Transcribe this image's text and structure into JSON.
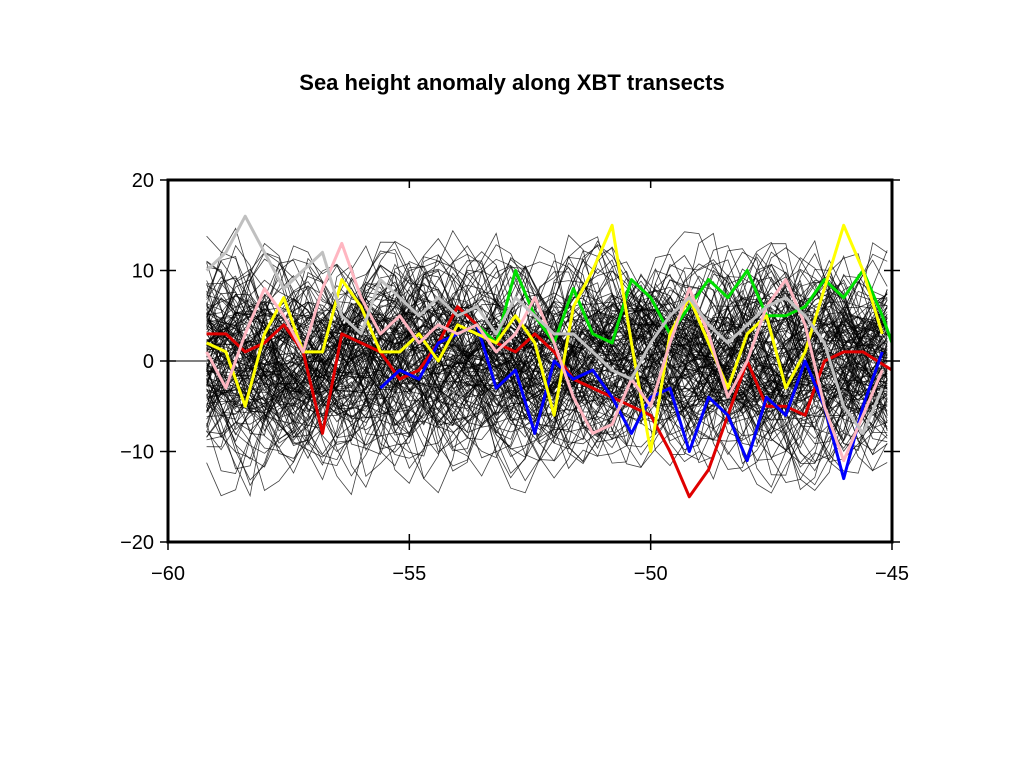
{
  "chart_data": {
    "type": "line",
    "title": "Sea height anomaly along XBT transects",
    "xlabel": "",
    "ylabel": "",
    "xlim": [
      -60,
      -45
    ],
    "ylim": [
      -20,
      20
    ],
    "xticks": [
      -60,
      -55,
      -50,
      -45
    ],
    "xtick_labels": [
      "−60",
      "−55",
      "−50",
      "−45"
    ],
    "yticks": [
      20,
      10,
      0,
      -10,
      -20
    ],
    "ytick_labels": [
      "20",
      "10",
      "0",
      "−10",
      "−20"
    ],
    "grid": false,
    "legend": "none",
    "background_series": {
      "description_count": 150,
      "color": "#000000",
      "x_start": -59.2,
      "x_end": -45,
      "x_step": 0.3,
      "envelope": [
        -20,
        20
      ]
    },
    "series": [
      {
        "color": "#e00000",
        "x": [
          -59.2,
          -58.8,
          -58.4,
          -58.0,
          -57.6,
          -57.2,
          -56.8,
          -56.4,
          -56.0,
          -55.6,
          -55.2,
          -54.8,
          -54.4,
          -54.0,
          -53.6,
          -53.2,
          -52.8,
          -52.4,
          -52.0,
          -51.6,
          -51.2,
          -50.8,
          -50.4,
          -50.0,
          -49.6,
          -49.2,
          -48.8,
          -48.4,
          -48.0,
          -47.6,
          -47.2,
          -46.8,
          -46.4,
          -46.0,
          -45.6,
          -45.0
        ],
        "y": [
          3,
          3,
          1,
          2,
          4,
          1,
          -8,
          3,
          2,
          1,
          -2,
          -1,
          2,
          6,
          4,
          2,
          1,
          3,
          1,
          -2,
          -3,
          -4,
          -5,
          -6,
          -10,
          -15,
          -12,
          -6,
          0,
          -5,
          -5,
          -6,
          0,
          1,
          1,
          -1
        ]
      },
      {
        "color": "#0000ff",
        "x": [
          -55.6,
          -55.2,
          -54.8,
          -54.4,
          -54.0,
          -53.6,
          -53.2,
          -52.8,
          -52.4,
          -52.0,
          -51.6,
          -51.2,
          -50.8,
          -50.4,
          -50.0,
          -49.6,
          -49.2,
          -48.8,
          -48.4,
          -48.0,
          -47.6,
          -47.2,
          -46.8,
          -46.4,
          -46.0,
          -45.6,
          -45.2
        ],
        "y": [
          -3,
          -1,
          -2,
          2,
          3,
          4,
          -3,
          -1,
          -8,
          0,
          -2,
          -1,
          -4,
          -8,
          -4,
          -3,
          -10,
          -4,
          -6,
          -11,
          -4,
          -6,
          0,
          -5,
          -13,
          -5,
          1
        ]
      },
      {
        "color": "#00e000",
        "x": [
          -54.0,
          -53.6,
          -53.2,
          -52.8,
          -52.4,
          -52.0,
          -51.6,
          -51.2,
          -50.8,
          -50.4,
          -50.0,
          -49.6,
          -49.2,
          -48.8,
          -48.4,
          -48.0,
          -47.6,
          -47.2,
          -46.8,
          -46.4,
          -46.0,
          -45.6,
          -45.2,
          -45.0
        ],
        "y": [
          3,
          4,
          2,
          10,
          5,
          2,
          8,
          3,
          2,
          9,
          7,
          3,
          6,
          9,
          7,
          10,
          5,
          5,
          6,
          9,
          7,
          10,
          5,
          2
        ]
      },
      {
        "color": "#ffff00",
        "x": [
          -59.2,
          -58.8,
          -58.4,
          -58.0,
          -57.6,
          -57.2,
          -56.8,
          -56.4,
          -56.0,
          -55.6,
          -55.2,
          -54.8,
          -54.4,
          -54.0,
          -53.6,
          -53.2,
          -52.8,
          -52.4,
          -52.0,
          -51.6,
          -51.2,
          -50.8,
          -50.4,
          -50.0,
          -49.6,
          -49.2,
          -48.8,
          -48.4,
          -48.0,
          -47.6,
          -47.2,
          -46.8,
          -46.4,
          -46.0,
          -45.6,
          -45.2
        ],
        "y": [
          2,
          1,
          -5,
          3,
          7,
          1,
          1,
          9,
          6,
          1,
          1,
          3,
          0,
          4,
          3,
          2,
          5,
          2,
          -6,
          6,
          10,
          15,
          2,
          -10,
          3,
          7,
          2,
          -3,
          3,
          5,
          -3,
          1,
          8,
          15,
          10,
          3
        ]
      },
      {
        "color": "#ffb6c1",
        "x": [
          -59.2,
          -58.8,
          -58.4,
          -58.0,
          -57.6,
          -57.2,
          -56.8,
          -56.4,
          -56.0,
          -55.6,
          -55.2,
          -54.8,
          -54.4,
          -54.0,
          -53.6,
          -53.2,
          -52.8,
          -52.4,
          -52.0,
          -51.6,
          -51.2,
          -50.8,
          -50.4,
          -50.0,
          -49.6,
          -49.2,
          -48.8,
          -48.4,
          -48.0,
          -47.6,
          -47.2,
          -46.8,
          -46.4,
          -46.0,
          -45.6,
          -45.2
        ],
        "y": [
          1,
          -3,
          3,
          8,
          5,
          1,
          8,
          13,
          7,
          3,
          5,
          2,
          4,
          3,
          4,
          1,
          3,
          7,
          2,
          -4,
          -8,
          -7,
          -2,
          -5,
          2,
          8,
          3,
          -4,
          0,
          6,
          9,
          4,
          -5,
          -11,
          -6,
          -1
        ]
      },
      {
        "color": "#c0c0c0",
        "x": [
          -59.2,
          -58.8,
          -58.4,
          -58.0,
          -57.6,
          -57.2,
          -56.8,
          -56.4,
          -56.0,
          -55.6,
          -55.2,
          -54.8,
          -54.4,
          -54.0,
          -53.6,
          -53.2,
          -52.8,
          -52.4,
          -52.0,
          -51.6,
          -51.2,
          -50.8,
          -50.4,
          -50.0,
          -49.6,
          -49.2,
          -48.8,
          -48.4,
          -48.0,
          -47.6,
          -47.2,
          -46.8,
          -46.4,
          -46.0,
          -45.6,
          -45.2
        ],
        "y": [
          10,
          12,
          16,
          12,
          8,
          10,
          12,
          5,
          3,
          9,
          7,
          5,
          7,
          5,
          6,
          3,
          7,
          5,
          3,
          3,
          1,
          -1,
          -2,
          2,
          5,
          7,
          4,
          2,
          4,
          6,
          7,
          5,
          2,
          -5,
          -8,
          -3
        ]
      }
    ]
  }
}
